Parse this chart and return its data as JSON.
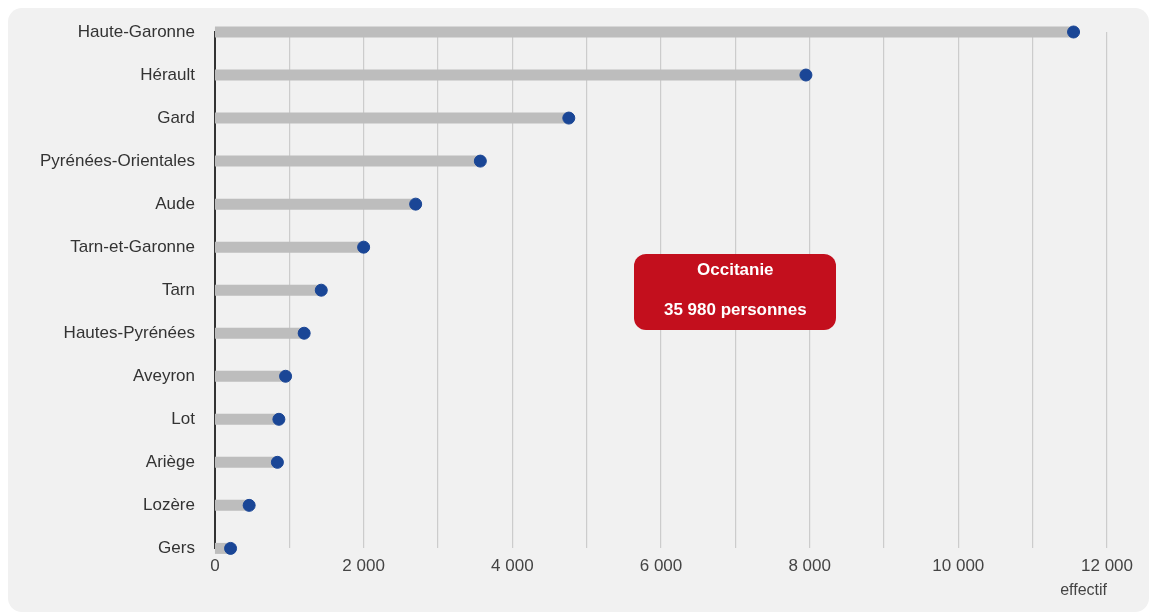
{
  "chart_data": {
    "type": "lollipop",
    "orientation": "horizontal",
    "xlabel": "effectif",
    "categories": [
      "Haute-Garonne",
      "Hérault",
      "Gard",
      "Pyrénées-Orientales",
      "Aude",
      "Tarn-et-Garonne",
      "Tarn",
      "Hautes-Pyrénées",
      "Aveyron",
      "Lot",
      "Ariège",
      "Lozère",
      "Gers"
    ],
    "series": [
      {
        "color": "#1a4696",
        "values": [
          11550,
          7950,
          4760,
          3570,
          2700,
          2000,
          1430,
          1200,
          950,
          860,
          840,
          460,
          210
        ]
      }
    ],
    "xlim": [
      0,
      12000
    ],
    "xticks": [
      0,
      {
        "value": 1000,
        "label": null
      },
      2000,
      {
        "value": 3000,
        "label": null
      },
      4000,
      {
        "value": 5000,
        "label": null
      },
      6000,
      {
        "value": 7000,
        "label": null
      },
      8000,
      {
        "value": 9000,
        "label": null
      },
      10000,
      {
        "value": 11000,
        "label": null
      },
      12000
    ],
    "grid": "x",
    "annotations": [
      "Occitanie",
      "35 980 personnes"
    ]
  }
}
